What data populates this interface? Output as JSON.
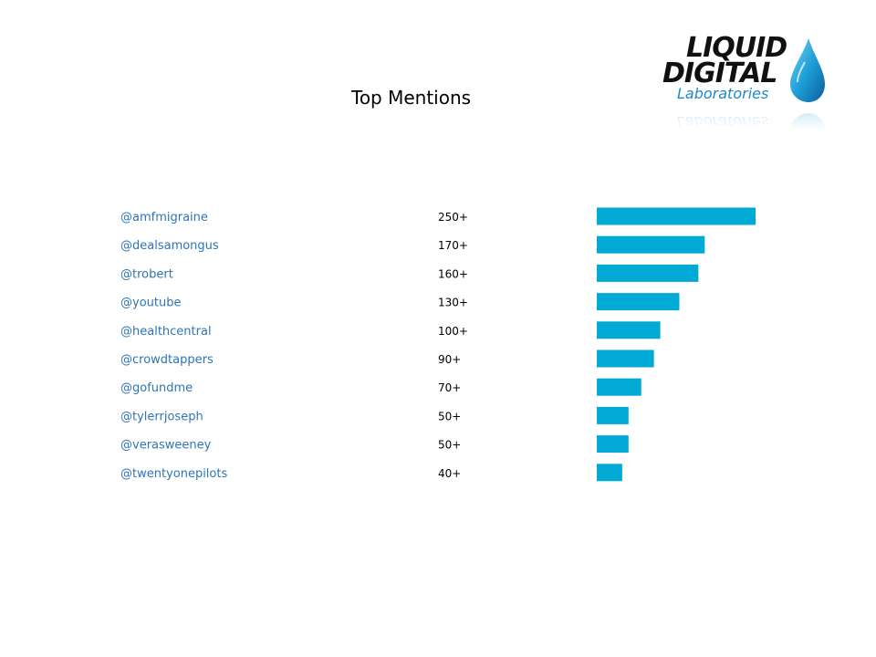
{
  "slide": {
    "title": "Top Mentions"
  },
  "logo": {
    "line1": "LIQUID",
    "line2": "DIGITAL",
    "line3": "Laboratories",
    "colors": {
      "text": "#111111",
      "accent": "#1e88c8",
      "drop": "#29a8e0"
    }
  },
  "chart_data": {
    "type": "bar",
    "orientation": "horizontal",
    "categories": [
      "@amfmigraine",
      "@dealsamongus",
      "@trobert",
      "@youtube",
      "@healthcentral",
      "@crowdtappers",
      "@gofundme",
      "@tylerrjoseph",
      "@verasweeney",
      "@twentyonepilots"
    ],
    "labels": [
      "250+",
      "170+",
      "160+",
      "130+",
      "100+",
      "90+",
      "70+",
      "50+",
      "50+",
      "40+"
    ],
    "values": [
      250,
      170,
      160,
      130,
      100,
      90,
      70,
      50,
      50,
      40
    ],
    "xlim": [
      0,
      250
    ],
    "grid": false,
    "colors": {
      "bar": "#00aad4",
      "category_text": "#2e75b6",
      "value_text": "#000000"
    }
  }
}
